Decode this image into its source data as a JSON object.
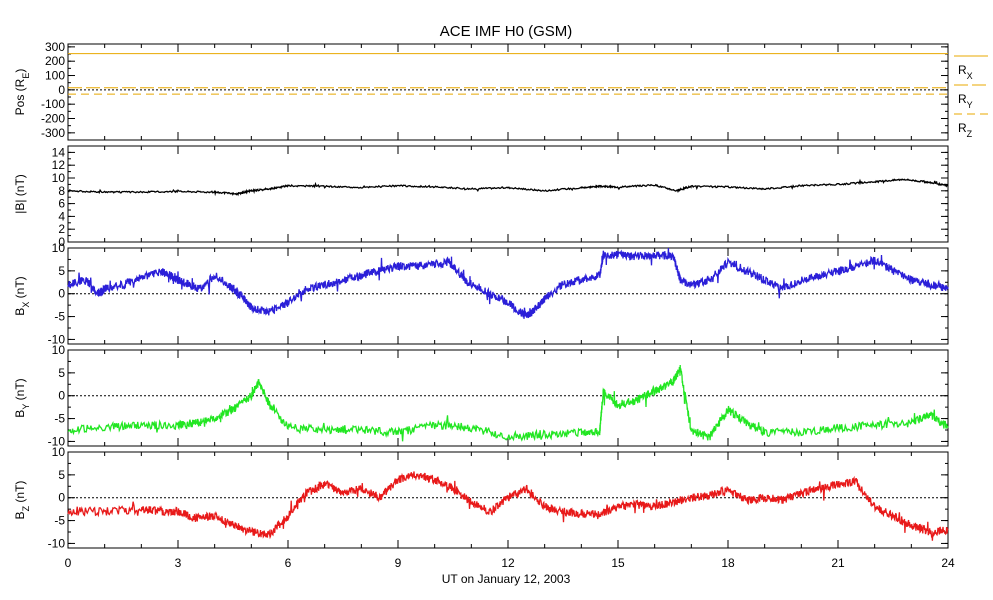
{
  "title": "ACE IMF H0 (GSM)",
  "xlabel": "UT on January 12, 2003",
  "x_ticks": [
    "0",
    "3",
    "6",
    "9",
    "12",
    "15",
    "18",
    "21",
    "24"
  ],
  "chart_data": [
    {
      "type": "line",
      "ylabel": "Pos (R",
      "ylabel_sub": "E",
      "ylabel_tail": ")",
      "ylim": [
        -350,
        320
      ],
      "yticks": [
        -300,
        -200,
        -100,
        0,
        100,
        200,
        300
      ],
      "zero_line": true,
      "series": [
        {
          "name": "R",
          "sub": "X",
          "color": "#e8a800",
          "dash": "solid",
          "x": [
            0,
            24
          ],
          "values": [
            253,
            253
          ]
        },
        {
          "name": "R",
          "sub": "Y",
          "color": "#e8a800",
          "dash": "long",
          "x": [
            0,
            24
          ],
          "values": [
            15,
            15
          ]
        },
        {
          "name": "R",
          "sub": "Z",
          "color": "#e8a800",
          "dash": "dash",
          "x": [
            0,
            24
          ],
          "values": [
            -30,
            -30
          ]
        }
      ]
    },
    {
      "type": "line",
      "ylabel": "|B| (nT)",
      "ylim": [
        0,
        15
      ],
      "yticks": [
        0,
        2,
        4,
        6,
        8,
        10,
        12,
        14
      ],
      "zero_line": false,
      "series": [
        {
          "name": "",
          "color": "#000000",
          "x": [
            0,
            1,
            2,
            3,
            4,
            4.6,
            5,
            5.5,
            6,
            7,
            8,
            9,
            10,
            11,
            12,
            13,
            14,
            14.5,
            15,
            16,
            16.6,
            17,
            18,
            19,
            20,
            21,
            22,
            22.8,
            23.5,
            24
          ],
          "values": [
            8,
            7.8,
            7.8,
            7.9,
            7.8,
            7.5,
            8,
            8.3,
            8.8,
            8.7,
            8.5,
            8.8,
            8.6,
            8.3,
            8.5,
            8,
            8.5,
            8.7,
            8.6,
            8.9,
            8,
            8.7,
            8.6,
            8.3,
            8.8,
            9,
            9.4,
            9.8,
            9.3,
            8.8
          ]
        }
      ]
    },
    {
      "type": "line",
      "ylabel": "B",
      "ylabel_sub": "X",
      "ylabel_tail": " (nT)",
      "ylim": [
        -11,
        10
      ],
      "yticks": [
        -10,
        -5,
        0,
        5,
        10
      ],
      "zero_line": true,
      "series": [
        {
          "name": "",
          "color": "#2b1fd8",
          "x": [
            0,
            0.5,
            0.8,
            1,
            1.5,
            2,
            2.5,
            2.8,
            3,
            3.3,
            3.6,
            4,
            4.5,
            4.8,
            5,
            5.5,
            6,
            6.5,
            7,
            7.5,
            8,
            8.5,
            9,
            9.5,
            10,
            10.4,
            10.7,
            11,
            11.5,
            12,
            12.5,
            12.8,
            13,
            13.5,
            14,
            14.5,
            14.6,
            15,
            15.5,
            16,
            16.5,
            16.7,
            17,
            17.5,
            18,
            18.5,
            19,
            19.5,
            20,
            20.5,
            21,
            21.5,
            22,
            22.5,
            23,
            23.5,
            24
          ],
          "values": [
            2,
            3,
            0,
            1,
            2,
            3.5,
            5,
            4,
            3,
            2,
            1,
            4,
            1,
            -1,
            -3,
            -4,
            -2,
            1,
            2,
            3,
            4,
            5,
            6,
            6,
            6.5,
            7,
            4,
            2,
            0,
            -2,
            -5,
            -3,
            -1,
            2,
            3,
            4,
            8.5,
            8.5,
            8.2,
            8.3,
            8.4,
            3,
            2,
            3,
            7,
            5,
            3,
            1,
            3,
            4,
            5,
            6,
            7.5,
            5,
            3,
            2,
            1
          ]
        }
      ]
    },
    {
      "type": "line",
      "ylabel": "B",
      "ylabel_sub": "Y",
      "ylabel_tail": " (nT)",
      "ylim": [
        -11,
        10
      ],
      "yticks": [
        -10,
        -5,
        0,
        5,
        10
      ],
      "zero_line": true,
      "series": [
        {
          "name": "",
          "color": "#22e622",
          "x": [
            0,
            1,
            2,
            3,
            3.5,
            4,
            4.5,
            5,
            5.2,
            5.5,
            6,
            7,
            8,
            9,
            10,
            11,
            12,
            13,
            14,
            14.5,
            14.6,
            15,
            15.5,
            16,
            16.5,
            16.7,
            17,
            17.5,
            18,
            18.5,
            19,
            20,
            21,
            22,
            23,
            23.5,
            24
          ],
          "values": [
            -7.5,
            -7,
            -6.5,
            -6.5,
            -6,
            -5,
            -3,
            0,
            3,
            -2,
            -7,
            -7.5,
            -7.5,
            -8,
            -6.5,
            -7,
            -9,
            -8.5,
            -8,
            -8,
            1,
            -2,
            -1,
            1,
            3,
            6,
            -8,
            -9,
            -3,
            -6,
            -8,
            -8,
            -7,
            -6.5,
            -6,
            -4,
            -7
          ]
        }
      ]
    },
    {
      "type": "line",
      "ylabel": "B",
      "ylabel_sub": "Z",
      "ylabel_tail": " (nT)",
      "ylim": [
        -11,
        10
      ],
      "yticks": [
        -10,
        -5,
        0,
        5,
        10
      ],
      "zero_line": true,
      "series": [
        {
          "name": "",
          "color": "#e81a1a",
          "x": [
            0,
            1,
            2,
            2.5,
            3,
            3.5,
            4,
            4.5,
            5,
            5.5,
            6,
            6.5,
            7,
            7.5,
            8,
            8.5,
            9,
            9.5,
            10,
            10.5,
            11,
            11.5,
            12,
            12.5,
            13,
            13.5,
            14,
            14.5,
            15,
            15.5,
            16,
            16.5,
            17,
            17.5,
            18,
            18.5,
            19,
            19.5,
            20,
            20.5,
            21,
            21.5,
            22,
            22.5,
            23,
            23.5,
            24
          ],
          "values": [
            -3,
            -3,
            -2.5,
            -3,
            -3,
            -4.5,
            -4,
            -6,
            -7.5,
            -8,
            -4,
            1,
            3,
            1,
            2,
            0,
            4,
            5,
            4,
            2,
            -1,
            -3,
            0,
            2,
            -2,
            -3,
            -3.5,
            -3.5,
            -2,
            -1.5,
            -2,
            -1,
            0,
            0.5,
            2,
            -0.5,
            0,
            -0.5,
            1,
            2,
            3,
            3.5,
            -2,
            -4,
            -6,
            -7.5,
            -7
          ]
        }
      ]
    }
  ]
}
